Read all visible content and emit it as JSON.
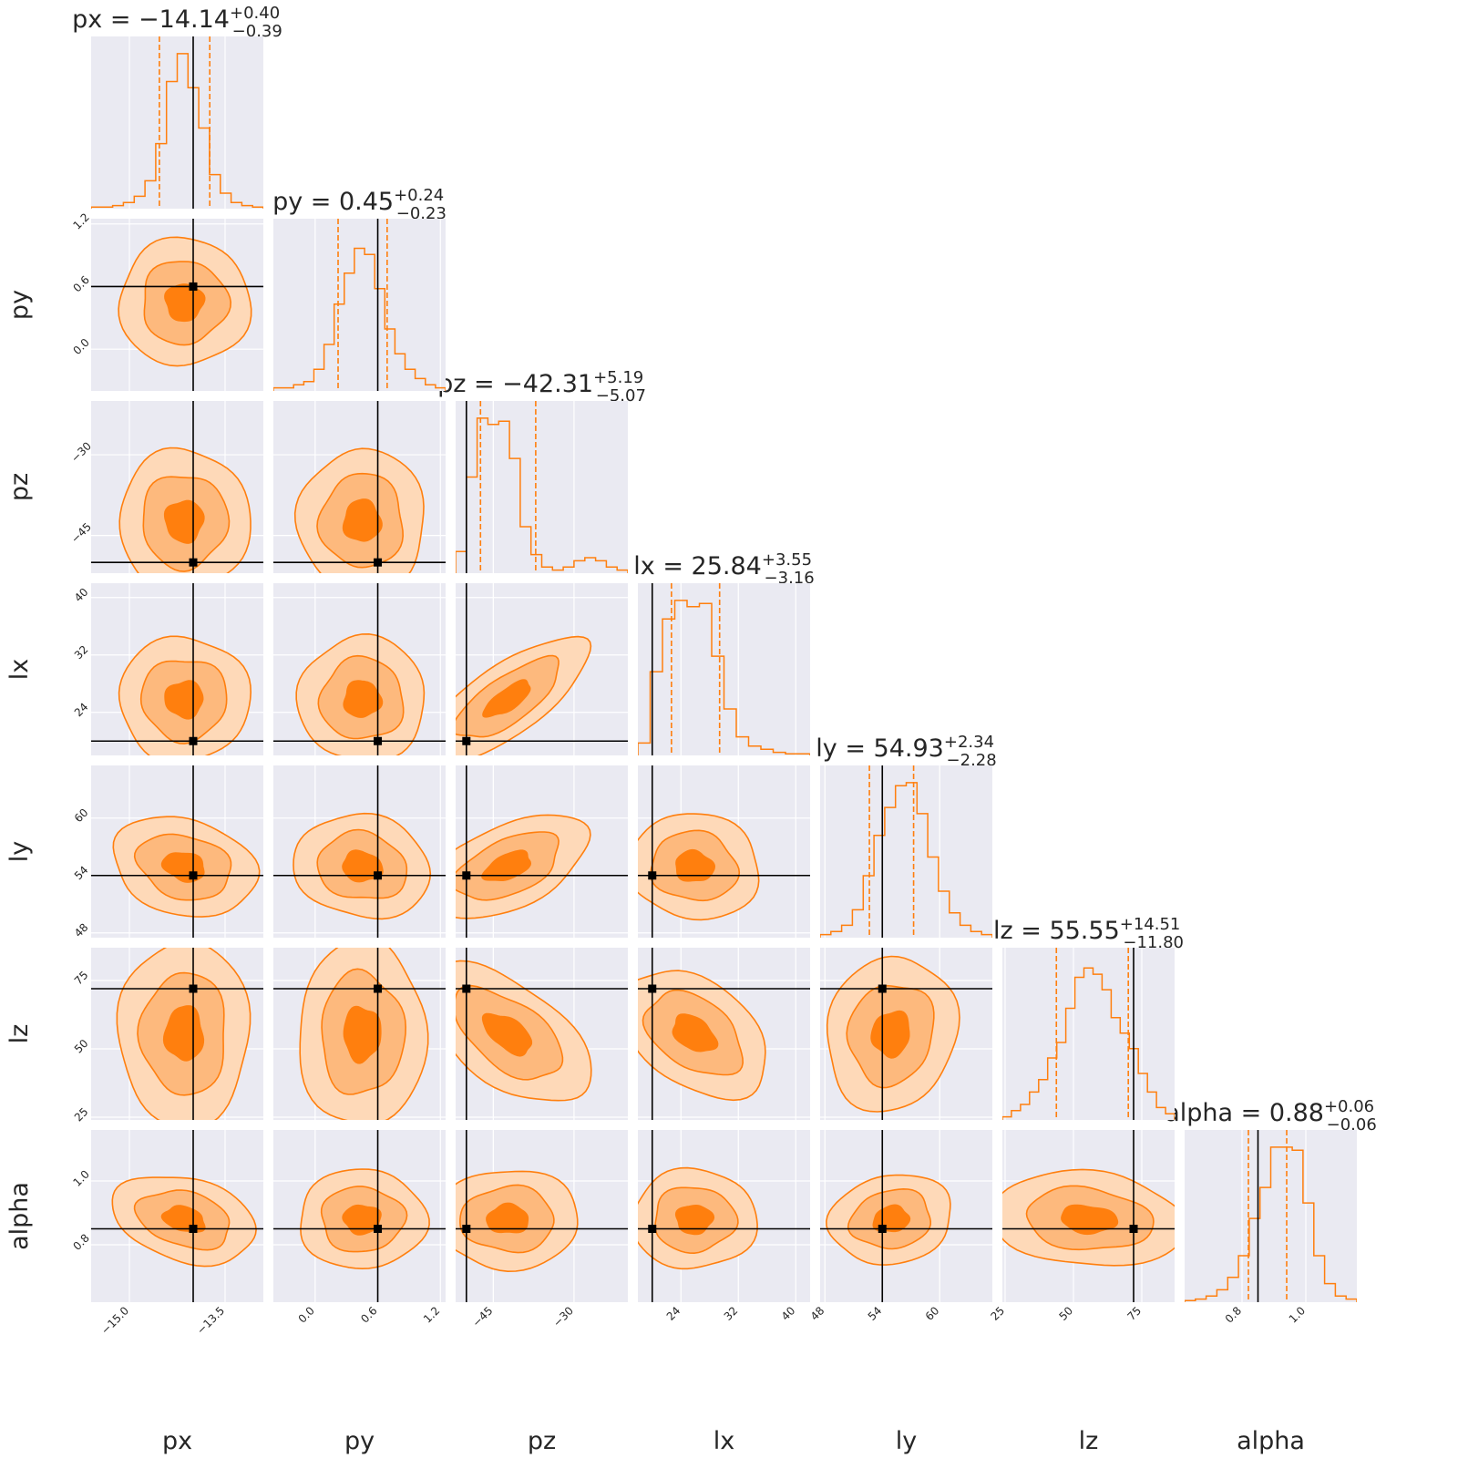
{
  "chart_data": {
    "type": "corner",
    "params": [
      "px",
      "py",
      "pz",
      "lx",
      "ly",
      "lz",
      "alpha"
    ],
    "truths": [
      -14.0,
      0.6,
      -50.0,
      20.0,
      54.0,
      72.0,
      0.85
    ],
    "medians": [
      -14.14,
      0.45,
      -42.31,
      25.84,
      54.93,
      55.55,
      0.88
    ],
    "errors_plus": [
      0.4,
      0.24,
      5.19,
      3.55,
      2.34,
      14.51,
      0.06
    ],
    "errors_minus": [
      0.39,
      0.23,
      5.07,
      3.16,
      2.28,
      11.8,
      0.06
    ],
    "titles": [
      {
        "lhs": "px = −14.14",
        "plus": "+0.40",
        "minus": "−0.39"
      },
      {
        "lhs": "py = 0.45",
        "plus": "+0.24",
        "minus": "−0.23"
      },
      {
        "lhs": "pz = −42.31",
        "plus": "+5.19",
        "minus": "−5.07"
      },
      {
        "lhs": "lx = 25.84",
        "plus": "+3.55",
        "minus": "−3.16"
      },
      {
        "lhs": "ly = 54.93",
        "plus": "+2.34",
        "minus": "−2.28"
      },
      {
        "lhs": "lz = 55.55",
        "plus": "+14.51",
        "minus": "−11.80"
      },
      {
        "lhs": "alpha = 0.88",
        "plus": "+0.06",
        "minus": "−0.06"
      }
    ],
    "ranges": [
      [
        -15.6,
        -12.9
      ],
      [
        -0.4,
        1.25
      ],
      [
        -52,
        -20
      ],
      [
        18,
        42
      ],
      [
        47.5,
        65.5
      ],
      [
        24,
        87
      ],
      [
        0.62,
        1.16
      ]
    ],
    "ticks": [
      {
        "values": [
          -15.0,
          -13.5
        ],
        "labels": [
          "−15.0",
          "−13.5"
        ]
      },
      {
        "values": [
          0.0,
          0.6,
          1.2
        ],
        "labels": [
          "0.0",
          "0.6",
          "1.2"
        ]
      },
      {
        "values": [
          -45,
          -30
        ],
        "labels": [
          "−45",
          "−30"
        ]
      },
      {
        "values": [
          24,
          32,
          40
        ],
        "labels": [
          "24",
          "32",
          "40"
        ]
      },
      {
        "values": [
          48,
          54,
          60
        ],
        "labels": [
          "48",
          "54",
          "60"
        ]
      },
      {
        "values": [
          25,
          50,
          75
        ],
        "labels": [
          "25",
          "50",
          "75"
        ]
      },
      {
        "values": [
          0.8,
          1.0
        ],
        "labels": [
          "0.8",
          "1.0"
        ]
      }
    ],
    "histograms": [
      [
        1,
        1,
        2,
        4,
        8,
        18,
        42,
        82,
        100,
        78,
        52,
        22,
        10,
        4,
        2,
        1
      ],
      [
        2,
        2,
        4,
        6,
        14,
        30,
        56,
        76,
        92,
        88,
        66,
        40,
        24,
        14,
        8,
        4,
        2
      ],
      [
        14,
        62,
        100,
        96,
        98,
        74,
        30,
        12,
        4,
        2,
        4,
        8,
        10,
        8,
        4,
        2
      ],
      [
        8,
        54,
        88,
        100,
        96,
        98,
        64,
        30,
        12,
        6,
        4,
        2,
        1,
        1
      ],
      [
        2,
        4,
        8,
        18,
        40,
        66,
        84,
        98,
        100,
        80,
        52,
        30,
        16,
        8,
        4,
        2
      ],
      [
        2,
        6,
        10,
        18,
        26,
        40,
        50,
        72,
        92,
        98,
        94,
        84,
        66,
        56,
        46,
        30,
        18,
        8,
        4
      ],
      [
        1,
        2,
        4,
        8,
        16,
        30,
        54,
        74,
        100,
        100,
        98,
        64,
        30,
        12,
        4,
        2
      ]
    ],
    "contour_levels": [
      "0.5σ",
      "1σ",
      "1.5σ",
      "2σ"
    ],
    "colors": {
      "fill_outer": "#fed9b8",
      "fill_mid": "#fdb97d",
      "fill_inner": "#ff7f0e",
      "line": "#ff7f0e",
      "panel_bg": "#eaeaf2",
      "grid": "#ffffff",
      "truth": "#000000"
    },
    "grid": true
  }
}
